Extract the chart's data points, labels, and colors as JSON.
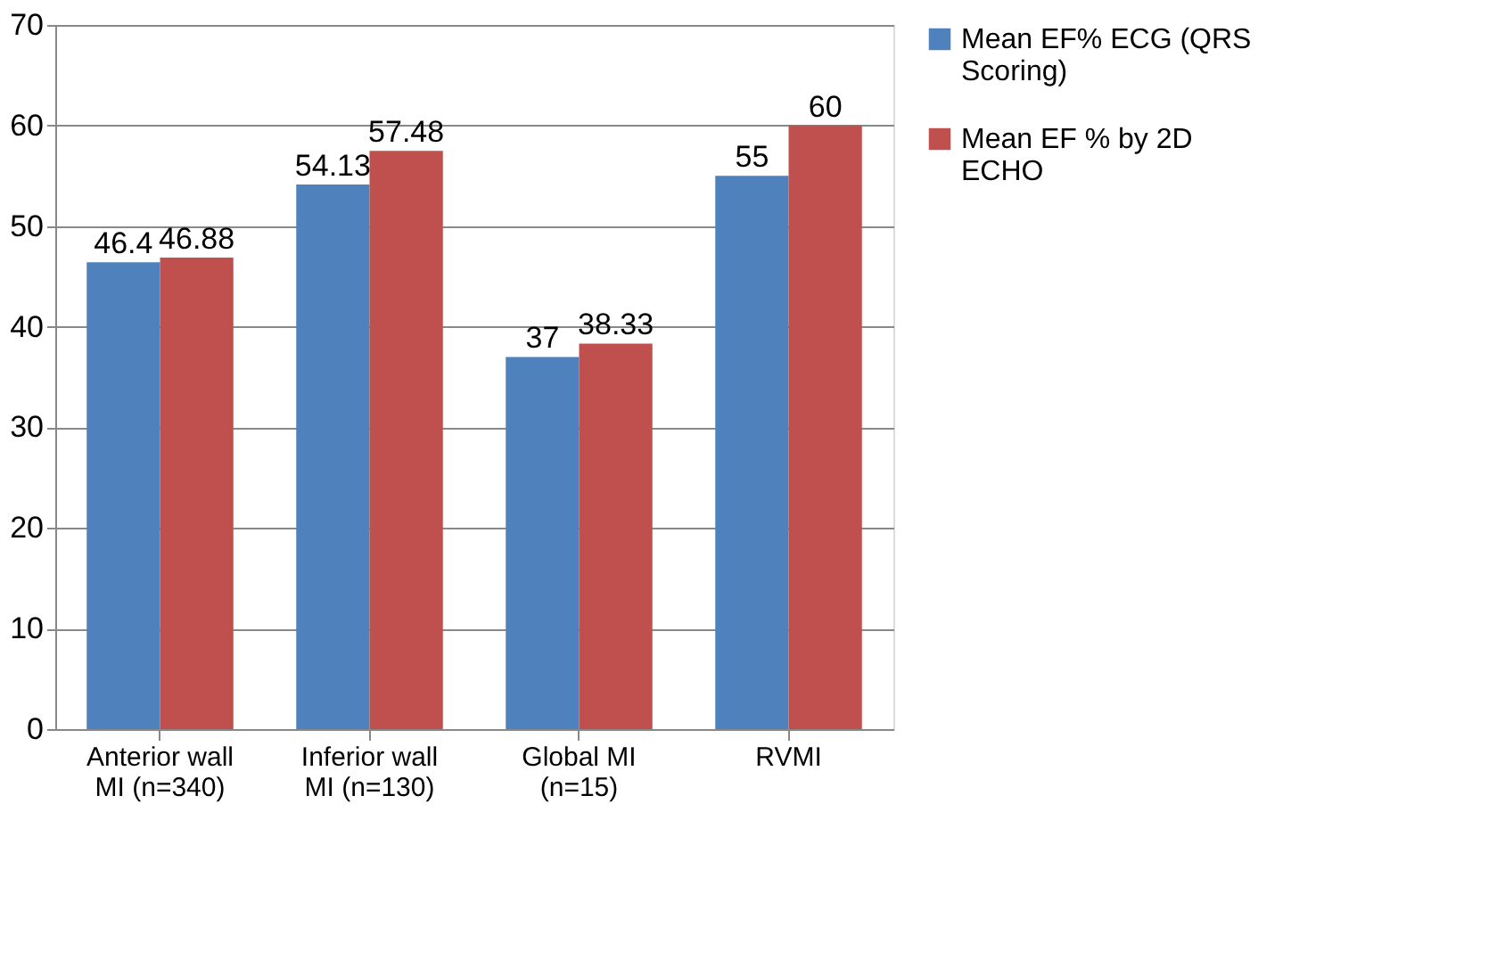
{
  "chart_data": {
    "type": "bar",
    "categories": [
      "Anterior wall MI (n=340)",
      "Inferior wall MI (n=130)",
      "Global MI (n=15)",
      "RVMI"
    ],
    "series": [
      {
        "name": "Mean EF% ECG (QRS Scoring)",
        "color": "#4f81bd",
        "values": [
          46.4,
          54.13,
          37,
          55
        ]
      },
      {
        "name": "Mean EF % by 2D ECHO",
        "color": "#c0504d",
        "values": [
          46.88,
          57.48,
          38.33,
          60
        ]
      }
    ],
    "ylim": [
      0,
      70
    ],
    "yticks": [
      0,
      10,
      20,
      30,
      40,
      50,
      60,
      70
    ],
    "grid": "y",
    "legend": "right",
    "data_labels": true
  }
}
